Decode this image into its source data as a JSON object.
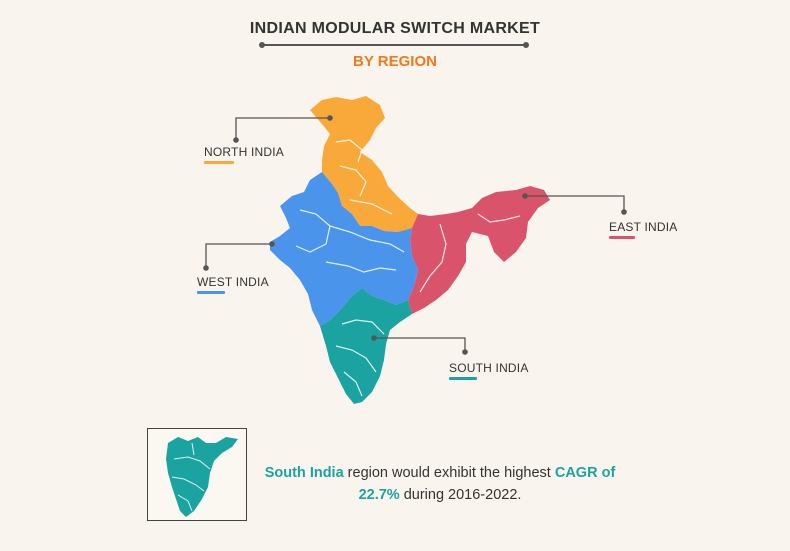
{
  "header": {
    "title": "INDIAN MODULAR SWITCH MARKET",
    "subtitle": "BY REGION"
  },
  "colors": {
    "north": "#f9a93a",
    "west": "#4a94ec",
    "east": "#d9536a",
    "south": "#1aa3a0",
    "title_accent": "#f07a1a"
  },
  "regions": {
    "north": "NORTH INDIA",
    "west": "WEST INDIA",
    "east": "EAST INDIA",
    "south": "SOUTH INDIA"
  },
  "callout": {
    "region": "South India",
    "text_a": " region would exhibit the highest ",
    "highlight": "CAGR of",
    "value": "22.7%",
    "text_b": " during 2016-2022."
  }
}
